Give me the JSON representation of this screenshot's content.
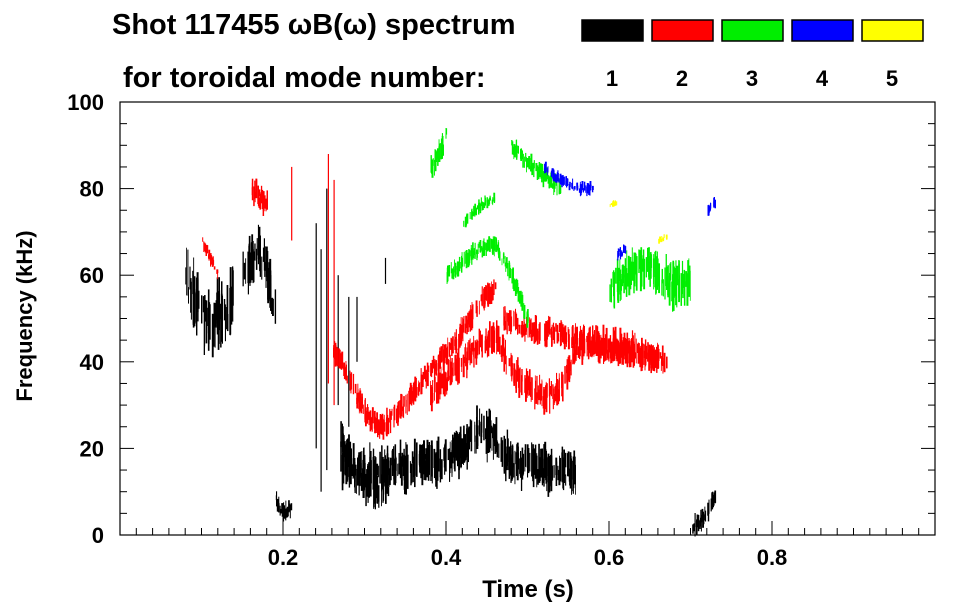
{
  "chart_data": {
    "type": "heatmap",
    "title": "Shot 117455 ωB(ω) spectrum",
    "subtitle": "for toroidal mode number:",
    "xlabel": "Time (s)",
    "ylabel": "Frequency (kHz)",
    "xlim": [
      0.0,
      1.0
    ],
    "ylim": [
      0,
      100
    ],
    "x_ticks": [
      "0.2",
      "0.4",
      "0.6",
      "0.8"
    ],
    "x_tick_values": [
      0.2,
      0.4,
      0.6,
      0.8
    ],
    "y_ticks": [
      "0",
      "20",
      "40",
      "60",
      "80",
      "100"
    ],
    "y_tick_values": [
      0,
      20,
      40,
      60,
      80,
      100
    ],
    "legend": [
      {
        "mode": "1",
        "color": "#000000"
      },
      {
        "mode": "2",
        "color": "#ff0000"
      },
      {
        "mode": "3",
        "color": "#00ee00"
      },
      {
        "mode": "4",
        "color": "#0000ff"
      },
      {
        "mode": "5",
        "color": "#ffff00"
      }
    ],
    "series": [
      {
        "name": "n=1",
        "color": "#000000",
        "bands": [
          {
            "t": [
              0.08,
              0.09,
              0.1,
              0.11,
              0.12,
              0.13,
              0.14
            ],
            "f": [
              58,
              55,
              51,
              48,
              52,
              50,
              58
            ],
            "w": 10
          },
          {
            "t": [
              0.15,
              0.16,
              0.17,
              0.18,
              0.19
            ],
            "f": [
              60,
              64,
              66,
              60,
              50
            ],
            "w": 8
          },
          {
            "t": [
              0.27,
              0.3,
              0.33,
              0.36,
              0.39,
              0.42,
              0.44,
              0.46,
              0.48,
              0.5,
              0.52,
              0.54,
              0.56
            ],
            "f": [
              16,
              15,
              16,
              16,
              17,
              20,
              24,
              22,
              17,
              16,
              15,
              15,
              15
            ],
            "w": 7
          },
          {
            "t": [
              0.27,
              0.29,
              0.31,
              0.33
            ],
            "f": [
              22,
              14,
              10,
              12
            ],
            "w": 6
          },
          {
            "t": [
              0.19,
              0.2,
              0.21
            ],
            "f": [
              8,
              5,
              6
            ],
            "w": 3
          },
          {
            "t": [
              0.7,
              0.71,
              0.72,
              0.73
            ],
            "f": [
              2,
              3,
              5,
              9
            ],
            "w": 3
          }
        ],
        "lines": [
          {
            "t": 0.24,
            "f": [
              20,
              72
            ]
          },
          {
            "t": 0.246,
            "f": [
              10,
              66
            ]
          },
          {
            "t": 0.253,
            "f": [
              15,
              80
            ]
          },
          {
            "t": 0.267,
            "f": [
              30,
              60
            ]
          },
          {
            "t": 0.28,
            "f": [
              25,
              55
            ]
          },
          {
            "t": 0.29,
            "f": [
              40,
              55
            ]
          },
          {
            "t": 0.325,
            "f": [
              58,
              64
            ]
          }
        ]
      },
      {
        "name": "n=2",
        "color": "#ff0000",
        "bands": [
          {
            "t": [
              0.26,
              0.28,
              0.3,
              0.32,
              0.34,
              0.36,
              0.38,
              0.4,
              0.42,
              0.44,
              0.46
            ],
            "f": [
              44,
              36,
              28,
              25,
              28,
              33,
              38,
              42,
              47,
              53,
              57
            ],
            "w": 4
          },
          {
            "t": [
              0.38,
              0.4,
              0.42,
              0.44,
              0.46,
              0.48,
              0.5,
              0.52,
              0.54,
              0.56,
              0.58,
              0.6,
              0.62,
              0.64,
              0.66
            ],
            "f": [
              32,
              36,
              40,
              44,
              46,
              38,
              34,
              32,
              34,
              43,
              44,
              44,
              43,
              42,
              41
            ],
            "w": 5
          },
          {
            "t": [
              0.47,
              0.49,
              0.51,
              0.53,
              0.55,
              0.57,
              0.59,
              0.61,
              0.63,
              0.65,
              0.67
            ],
            "f": [
              50,
              48,
              47,
              47,
              46,
              45,
              43,
              42,
              42,
              41,
              40
            ],
            "w": 4
          },
          {
            "t": [
              0.16,
              0.17,
              0.18
            ],
            "f": [
              80,
              78,
              76
            ],
            "w": 4
          },
          {
            "t": [
              0.1,
              0.11,
              0.12
            ],
            "f": [
              68,
              64,
              60
            ],
            "w": 2
          }
        ],
        "lines": [
          {
            "t": 0.255,
            "f": [
              35,
              88
            ]
          },
          {
            "t": 0.262,
            "f": [
              30,
              82
            ]
          },
          {
            "t": 0.21,
            "f": [
              68,
              85
            ]
          }
        ]
      },
      {
        "name": "n=3",
        "color": "#00ee00",
        "bands": [
          {
            "t": [
              0.38,
              0.39,
              0.4
            ],
            "f": [
              84,
              88,
              92
            ],
            "w": 4
          },
          {
            "t": [
              0.4,
              0.42,
              0.44,
              0.46,
              0.48,
              0.5
            ],
            "f": [
              60,
              63,
              66,
              67,
              60,
              50
            ],
            "w": 3
          },
          {
            "t": [
              0.48,
              0.5,
              0.52,
              0.54
            ],
            "f": [
              90,
              86,
              83,
              80
            ],
            "w": 3
          },
          {
            "t": [
              0.6,
              0.62,
              0.64,
              0.66,
              0.68,
              0.7
            ],
            "f": [
              58,
              60,
              62,
              60,
              58,
              58
            ],
            "w": 7
          },
          {
            "t": [
              0.42,
              0.44,
              0.46
            ],
            "f": [
              72,
              76,
              78
            ],
            "w": 2
          }
        ],
        "lines": []
      },
      {
        "name": "n=4",
        "color": "#0000ff",
        "bands": [
          {
            "t": [
              0.52,
              0.54,
              0.56,
              0.58
            ],
            "f": [
              85,
              82,
              80,
              80
            ],
            "w": 2
          },
          {
            "t": [
              0.61,
              0.62
            ],
            "f": [
              65,
              66
            ],
            "w": 2
          },
          {
            "t": [
              0.72,
              0.73
            ],
            "f": [
              75,
              77
            ],
            "w": 2
          }
        ],
        "lines": []
      },
      {
        "name": "n=5",
        "color": "#ffff00",
        "bands": [
          {
            "t": [
              0.6,
              0.61
            ],
            "f": [
              76,
              77
            ],
            "w": 1
          },
          {
            "t": [
              0.66,
              0.67
            ],
            "f": [
              68,
              69
            ],
            "w": 1
          }
        ],
        "lines": []
      }
    ]
  }
}
